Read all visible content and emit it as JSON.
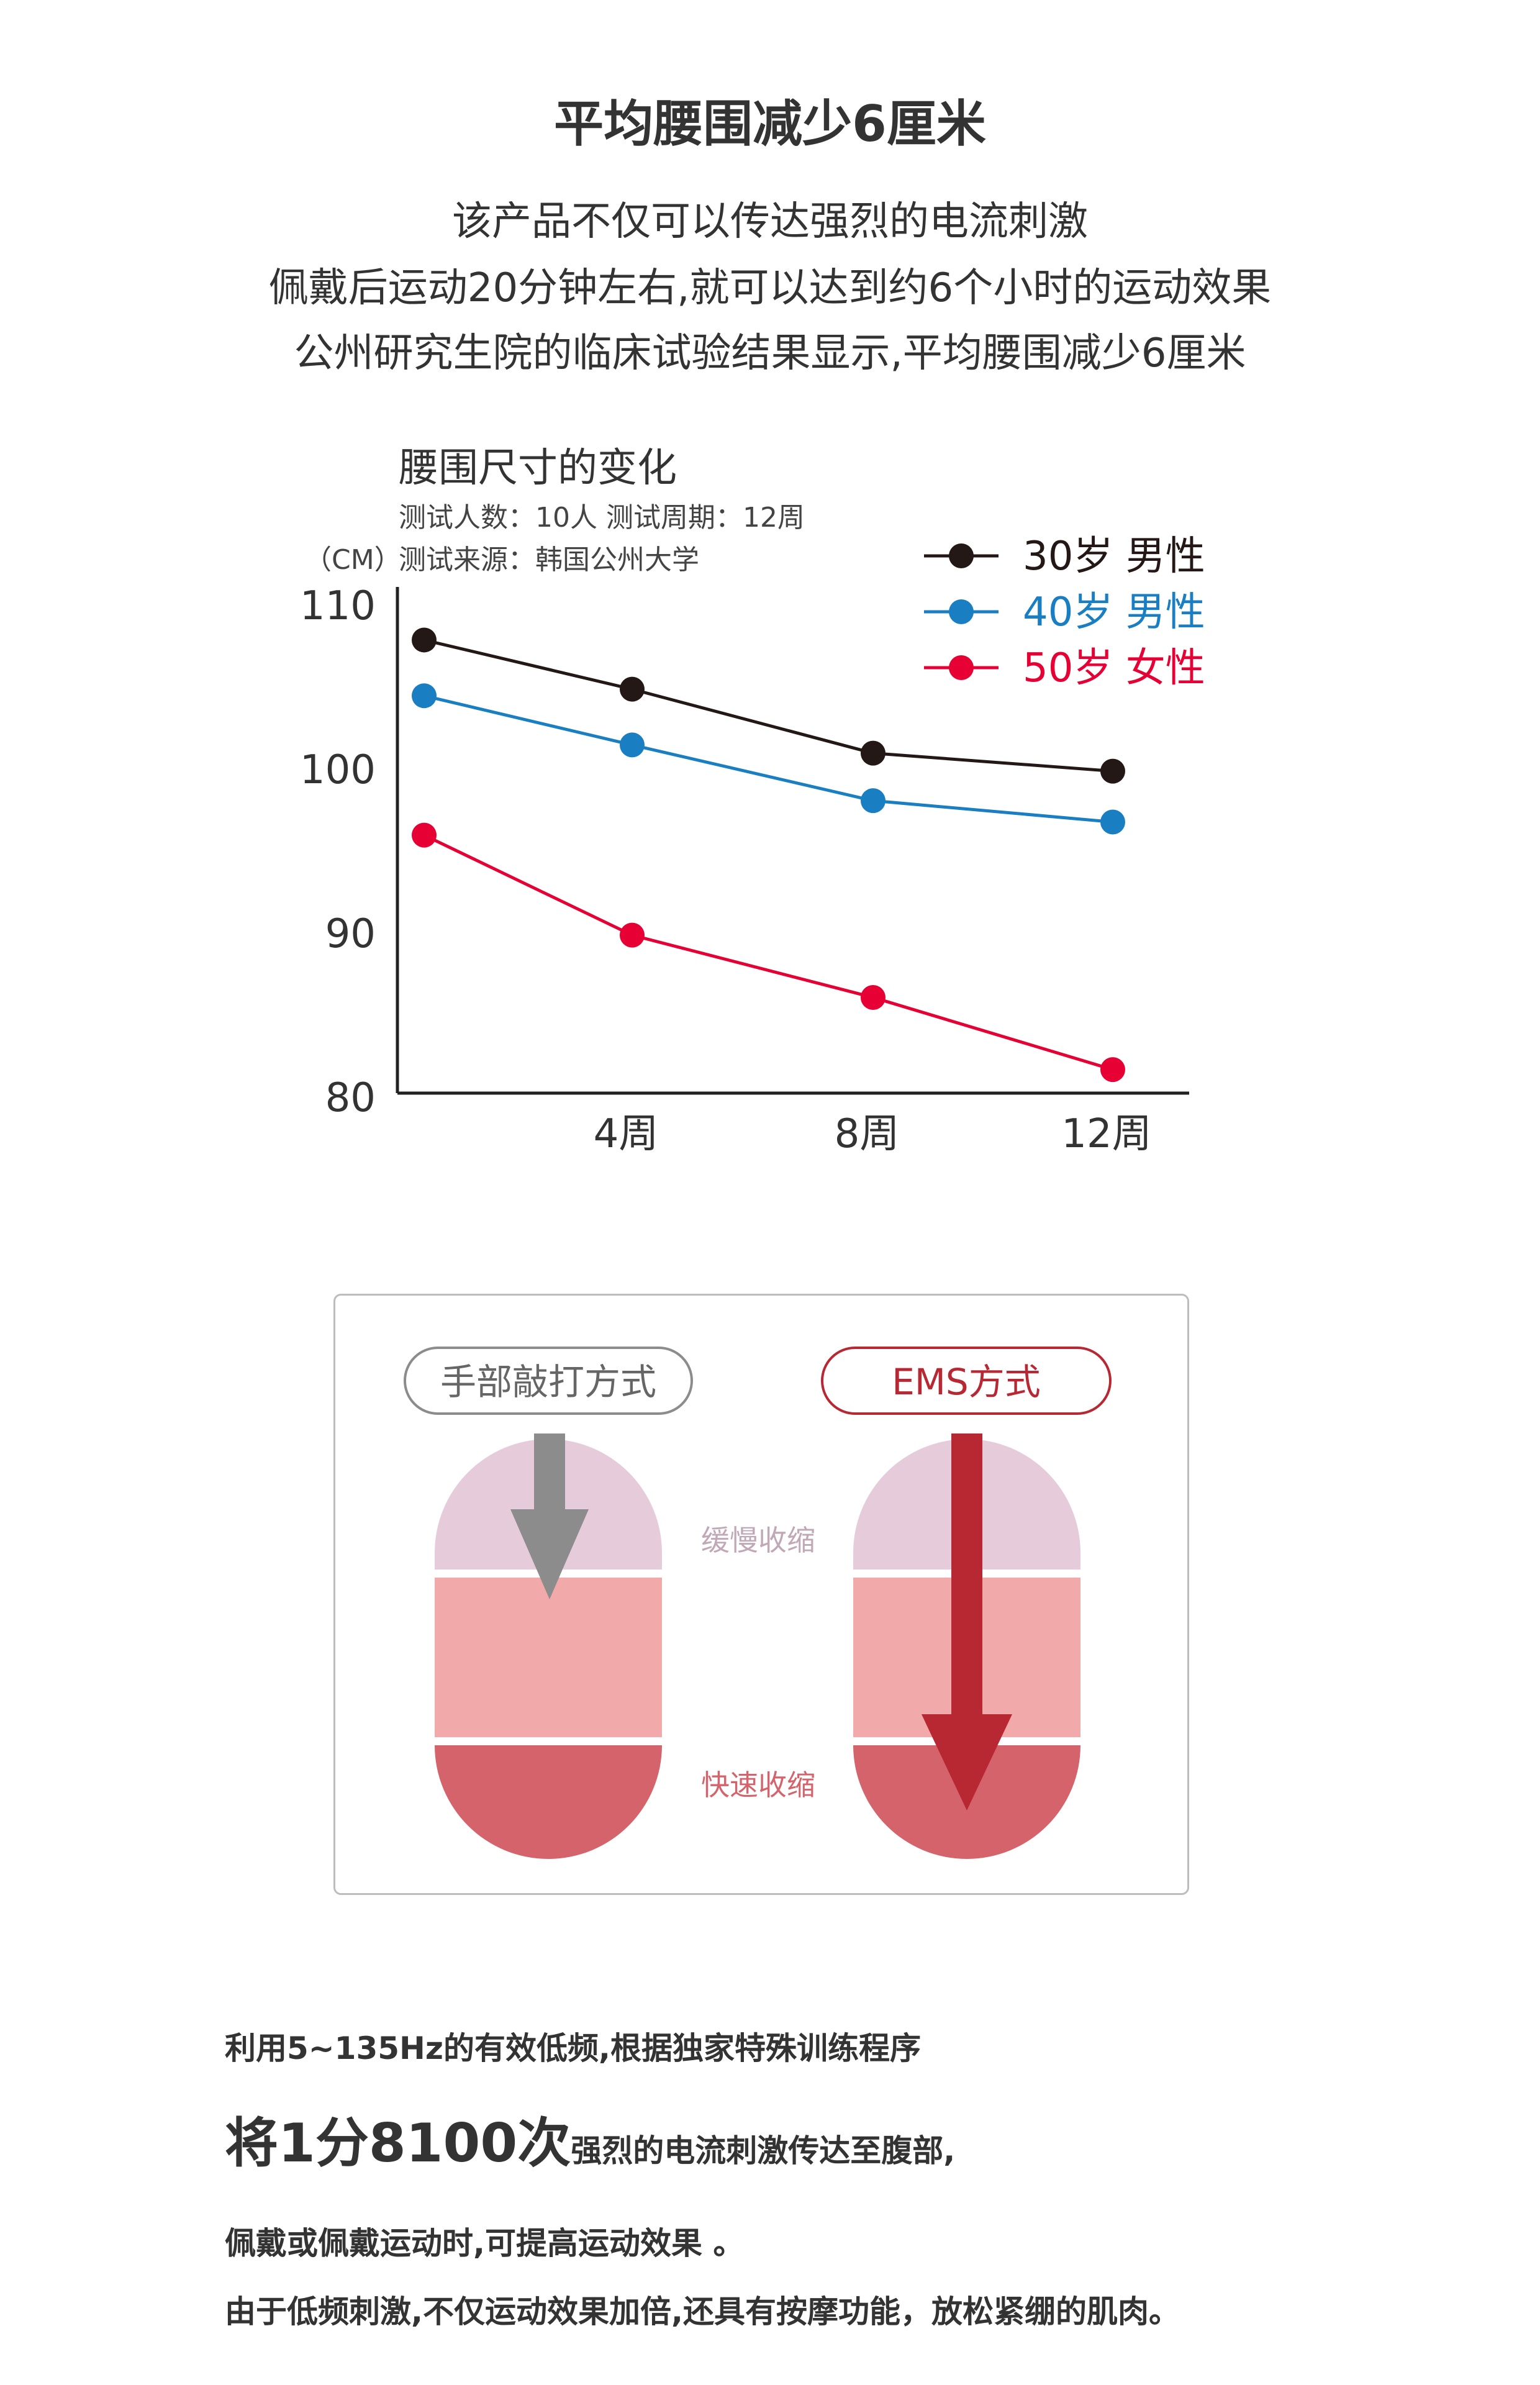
{
  "heading": "平均腰围减少6厘米",
  "intro_lines": [
    "该产品不仅可以传达强烈的电流刺激",
    "佩戴后运动20分钟左右,就可以达到约6个小时的运动效果",
    "公州研究生院的临床试验结果显示,平均腰围减少6厘米"
  ],
  "chart_data": {
    "type": "line",
    "title": "腰围尺寸的变化",
    "notes": [
      "测试人数：10人  测试周期：12周",
      "测试来源：韩国公州大学"
    ],
    "ylabel": "（CM）",
    "xlabel": "",
    "x": [
      0,
      4,
      8,
      12
    ],
    "x_tick_labels": [
      "4周",
      "8周",
      "12周"
    ],
    "x_tick_values": [
      4,
      8,
      12
    ],
    "ylim": [
      80,
      110
    ],
    "y_ticks": [
      80,
      90,
      100,
      110
    ],
    "grid": false,
    "legend_position": "top-right",
    "series": [
      {
        "name": "30岁 男性",
        "color": "#231815",
        "values": [
          107.9,
          104.9,
          101.0,
          99.9
        ]
      },
      {
        "name": "40岁 男性",
        "color": "#1a7ec2",
        "values": [
          104.5,
          101.5,
          98.1,
          96.8
        ]
      },
      {
        "name": "50岁 女性",
        "color": "#e60033",
        "values": [
          96.0,
          89.9,
          86.1,
          81.7
        ]
      }
    ]
  },
  "diagram": {
    "left_label": "手部敲打方式",
    "right_label": "EMS方式",
    "slow_label": "缓慢收缩",
    "fast_label": "快速收缩",
    "colors": {
      "top": "#e6ccdb",
      "middle": "#f1aaa9",
      "bottom": "#d5636b",
      "gray_arrow": "#8c8c8c",
      "red_arrow": "#b72833"
    }
  },
  "copy": {
    "line1": "利用5~135Hz的有效低频,根据独家特殊训练程序",
    "line2_big": "将1分8100次",
    "line2_rest": "强烈的电流刺激传达至腹部,",
    "line3": "佩戴或佩戴运动时,可提高运动效果 。",
    "line4": "由于低频刺激,不仅运动效果加倍,还具有按摩功能，放松紧绷的肌肉。"
  }
}
